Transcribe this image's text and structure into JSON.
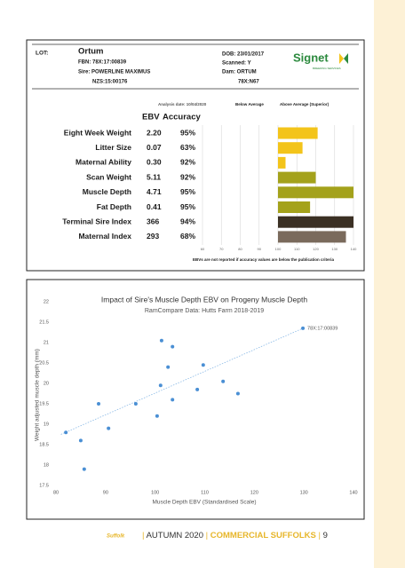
{
  "report": {
    "lot_label": "LOT:",
    "name": "Ortum",
    "fbn": "FBN: 78X:17:00839",
    "sire": "Sire: POWERLINE MAXIMUS",
    "sire_id": "NZS:15:00176",
    "dob": "DOB: 23/01/2017",
    "scanned": "Scanned: Y",
    "dam": "Dam: ORTUM",
    "dam_id": "78X:N67",
    "logo": "Signet",
    "logo_sub": "BREEDING SERVICES",
    "analysis_date": "Analysis date: 10/04/2020",
    "below_average": "Below Average",
    "above_average": "Above Average (Superior)",
    "header_ebv": "EBV",
    "header_accuracy": "Accuracy",
    "ebv": [
      "2.20",
      "0.07",
      "0.30",
      "5.11",
      "4.71",
      "0.41",
      "366",
      "293"
    ],
    "accuracy": [
      "95%",
      "63%",
      "92%",
      "92%",
      "95%",
      "95%",
      "94%",
      "68%"
    ],
    "footnote": "EBVs are not reported if accuracy values are below the publication criteria"
  },
  "chart_data": [
    {
      "type": "bar",
      "orientation": "horizontal",
      "categories": [
        "Eight Week Weight",
        "Litter Size",
        "Maternal Ability",
        "Scan Weight",
        "Muscle Depth",
        "Fat Depth",
        "Terminal Sire Index",
        "Maternal Index"
      ],
      "values": [
        121,
        113,
        104,
        120,
        140,
        117,
        140,
        136
      ],
      "base": 100,
      "colors": [
        "#f3c41a",
        "#f3c41a",
        "#f3c41a",
        "#a4a21b",
        "#a4a21b",
        "#a4a21b",
        "#3b3024",
        "#7a6a5c"
      ],
      "xlim": [
        60,
        140
      ],
      "xticks": [
        60,
        70,
        80,
        90,
        100,
        110,
        120,
        130,
        140
      ],
      "grid": true
    },
    {
      "type": "scatter",
      "title": "Impact of Sire's Muscle Depth EBV on Progeny Muscle Depth",
      "subtitle": "RamCompare Data: Hutts Farm 2018-2019",
      "x_label": "Muscle Depth EBV (Standardised Scale)",
      "y_label": "Weight adjusted muscle depth (mm)",
      "annotation": "78X:17:00839",
      "color": "#4a8fd4",
      "x": [
        82.0,
        85.0,
        85.7,
        88.6,
        90.6,
        96.1,
        100.4,
        101.1,
        101.3,
        102.6,
        103.5,
        103.5,
        108.5,
        109.7,
        113.7,
        116.7,
        129.8
      ],
      "y": [
        18.8,
        18.6,
        17.9,
        19.5,
        18.9,
        19.5,
        19.2,
        19.95,
        21.05,
        20.4,
        20.9,
        19.6,
        19.85,
        20.45,
        20.05,
        19.75,
        21.35
      ],
      "trendline": {
        "x": [
          81,
          129.8
        ],
        "y": [
          18.75,
          21.35
        ],
        "color": "#8ab9e6"
      },
      "xlim": [
        80,
        140
      ],
      "xticks": [
        80,
        90,
        100,
        110,
        120,
        130,
        140
      ],
      "ylim": [
        17.5,
        22
      ],
      "yticks": [
        17.5,
        18,
        18.5,
        19,
        19.5,
        20,
        20.5,
        21,
        21.5,
        22
      ]
    }
  ],
  "footer": {
    "logo": "Suffolk",
    "separator": "|",
    "issue": "AUTUMN 2020",
    "title": "COMMERCIAL SUFFOLKS",
    "page": "9"
  }
}
